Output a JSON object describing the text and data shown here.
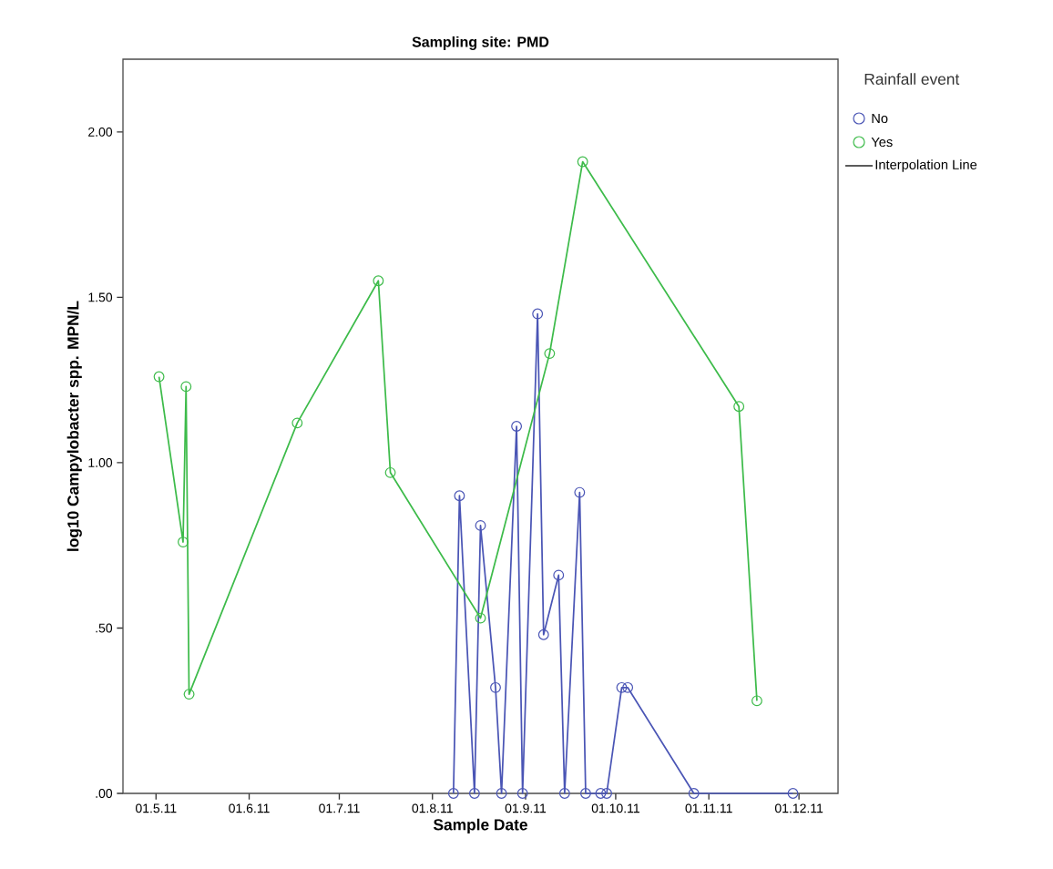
{
  "chart_data": {
    "type": "line",
    "title": "Sampling site:   PMD",
    "xlabel": "Sample Date",
    "ylabel": "log10 Campylobacter spp. MPN/L",
    "legend_title": "Rainfall event",
    "annotations": [
      "Interpolation Line"
    ],
    "legend": "top right",
    "marker": "circle",
    "line_style": "solid",
    "xlim": [
      "2011-04-20",
      "2011-12-14"
    ],
    "xticks": [
      {
        "value": "2011-05-01",
        "label": "01.5.11"
      },
      {
        "value": "2011-06-01",
        "label": "01.6.11"
      },
      {
        "value": "2011-07-01",
        "label": "01.7.11"
      },
      {
        "value": "2011-08-01",
        "label": "01.8.11"
      },
      {
        "value": "2011-09-01",
        "label": "01.9.11"
      },
      {
        "value": "2011-10-01",
        "label": "01.10.11"
      },
      {
        "value": "2011-11-01",
        "label": "01.11.11"
      },
      {
        "value": "2011-12-01",
        "label": "01.12.11"
      }
    ],
    "ylim": [
      0,
      2.22
    ],
    "yticks": [
      {
        "value": 0,
        "label": ".00"
      },
      {
        "value": 0.5,
        "label": ".50"
      },
      {
        "value": 1,
        "label": "1.00"
      },
      {
        "value": 1.5,
        "label": "1.50"
      },
      {
        "value": 2,
        "label": "2.00"
      }
    ],
    "series": [
      {
        "name": "No",
        "color": "#4a55b5",
        "x": [
          "2011-08-08",
          "2011-08-10",
          "2011-08-15",
          "2011-08-17",
          "2011-08-22",
          "2011-08-24",
          "2011-08-29",
          "2011-08-31",
          "2011-09-05",
          "2011-09-07",
          "2011-09-12",
          "2011-09-14",
          "2011-09-19",
          "2011-09-21",
          "2011-09-26",
          "2011-09-28",
          "2011-10-03",
          "2011-10-05",
          "2011-10-27",
          "2011-11-29"
        ],
        "values": [
          0,
          0.9,
          0,
          0.81,
          0.32,
          0,
          1.11,
          0,
          1.45,
          0.48,
          0.66,
          0,
          0.91,
          0,
          0,
          0,
          0.32,
          0.32,
          0,
          0
        ]
      },
      {
        "name": "Yes",
        "color": "#3dbb4a",
        "x": [
          "2011-05-02",
          "2011-05-10",
          "2011-05-11",
          "2011-05-12",
          "2011-06-17",
          "2011-07-14",
          "2011-07-18",
          "2011-08-17",
          "2011-09-09",
          "2011-09-20",
          "2011-11-11",
          "2011-11-17"
        ],
        "values": [
          1.26,
          0.76,
          1.23,
          0.3,
          1.12,
          1.55,
          0.97,
          0.53,
          1.33,
          1.91,
          1.17,
          0.28
        ]
      }
    ]
  }
}
